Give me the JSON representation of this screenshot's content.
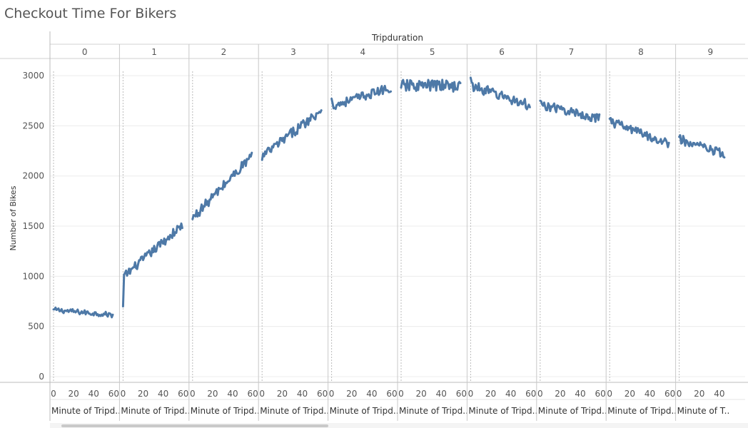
{
  "title": "Checkout Time For Bikers",
  "chart_data": {
    "type": "line",
    "title": "Checkout Time For Bikers",
    "column_header": "Tripduration",
    "ylabel": "Number of Bikes",
    "xlabel": "Minute of Tripd..",
    "ylim": [
      0,
      3100
    ],
    "yticks": [
      0,
      500,
      1000,
      1500,
      2000,
      2500,
      3000
    ],
    "xticks": [
      0,
      20,
      40,
      60
    ],
    "xlim": [
      0,
      60
    ],
    "color": "#4e79a7",
    "grid": true,
    "panels": [
      {
        "hour": "0",
        "footer": "Minute of Tripd..",
        "start": 665,
        "end": 615,
        "noise": 25,
        "first": 670
      },
      {
        "hour": "1",
        "footer": "Minute of Tripd..",
        "start": 1000,
        "end": 1510,
        "noise": 45,
        "first": 700
      },
      {
        "hour": "2",
        "footer": "Minute of Tripd..",
        "start": 1590,
        "end": 2200,
        "noise": 50,
        "first": 1570
      },
      {
        "hour": "3",
        "footer": "Minute of Tripd..",
        "start": 2200,
        "end": 2660,
        "noise": 50,
        "first": 2160
      },
      {
        "hour": "4",
        "footer": "Minute of Tripd..",
        "start": 2700,
        "end": 2880,
        "noise": 45,
        "first": 2770
      },
      {
        "hour": "5",
        "footer": "Minute of Tripd..",
        "start": 2900,
        "end": 2900,
        "noise": 60,
        "first": 2880
      },
      {
        "hour": "6",
        "footer": "Minute of Tripd..",
        "start": 2900,
        "end": 2700,
        "noise": 50,
        "first": 2980
      },
      {
        "hour": "7",
        "footer": "Minute of Tripd..",
        "start": 2710,
        "end": 2570,
        "noise": 45,
        "first": 2750
      },
      {
        "hour": "8",
        "footer": "Minute of Tripd..",
        "start": 2540,
        "end": 2320,
        "noise": 45,
        "first": 2570
      },
      {
        "hour": "9",
        "footer": "Minute of T..",
        "start": 2360,
        "end": 2210,
        "noise": 50,
        "first": 2390,
        "max_minute": 45
      }
    ]
  }
}
